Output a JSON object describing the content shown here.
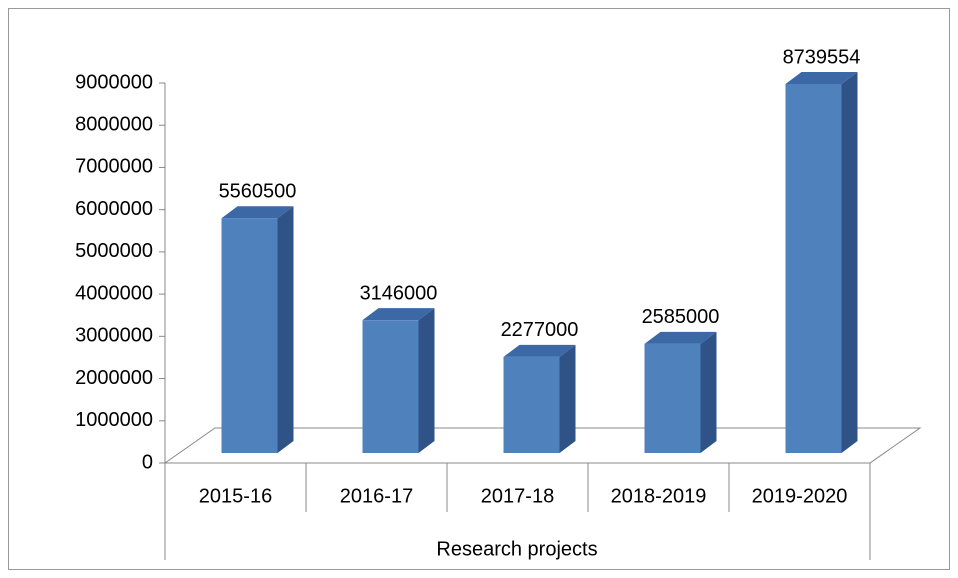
{
  "chart_data": {
    "type": "bar3d",
    "x_label": "Research projects",
    "categories": [
      "2015-16",
      "2016-17",
      "2017-18",
      "2018-2019",
      "2019-2020"
    ],
    "values": [
      5560500,
      3146000,
      2277000,
      2585000,
      8739554
    ],
    "color": "#4f81bd",
    "ylim": [
      0,
      9000000
    ],
    "yticks": [
      0,
      1000000,
      2000000,
      3000000,
      4000000,
      5000000,
      6000000,
      7000000,
      8000000,
      9000000
    ]
  }
}
